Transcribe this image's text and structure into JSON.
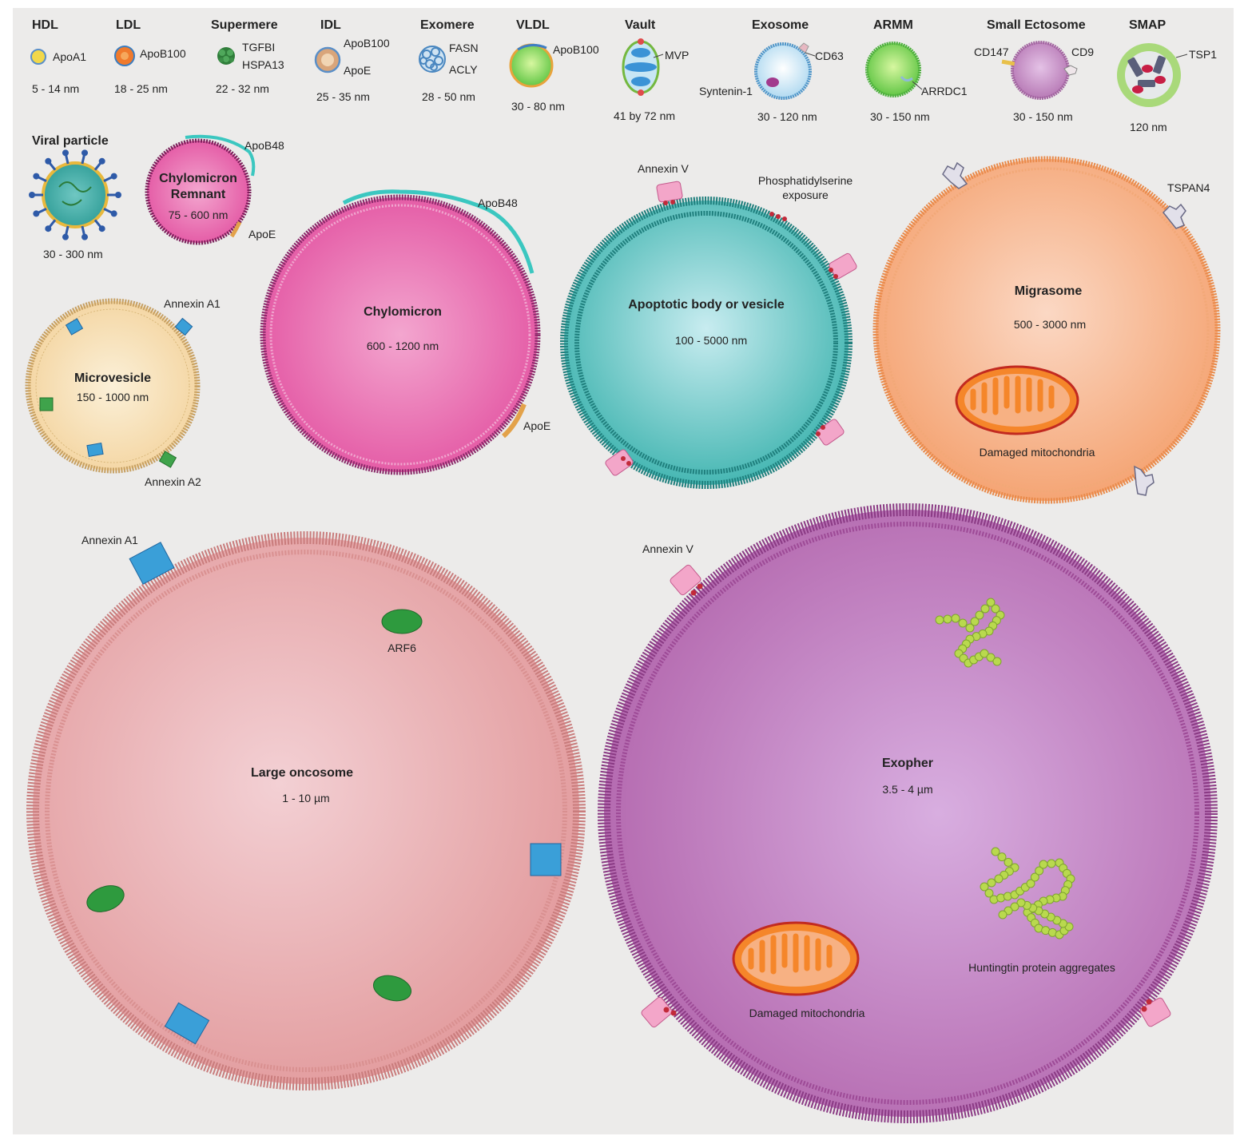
{
  "colors": {
    "background": "#ecebea",
    "hdl": "#f2d84a",
    "ldl": "#f07a2c",
    "chylomicron": "#e95aa6",
    "apoptotic": "#3fb5b0",
    "migrasome": "#f6a77a",
    "microvesicle": "#f6d6a0",
    "large_oncosome": "#e9a8a8",
    "exopher": "#b76bb0",
    "annexin_blue": "#3a9fd8",
    "arf6_green": "#2e9a3e",
    "huntingtin": "#b5d64a"
  },
  "top_row": [
    {
      "name": "HDL",
      "protein": "ApoA1",
      "size": "5 - 14 nm",
      "icon": "hdl-particle-icon"
    },
    {
      "name": "LDL",
      "protein": "ApoB100",
      "size": "18 - 25 nm",
      "icon": "ldl-particle-icon"
    },
    {
      "name": "Supermere",
      "protein": "TGFBI",
      "protein2": "HSPA13",
      "size": "22 - 32 nm",
      "icon": "supermere-icon"
    },
    {
      "name": "IDL",
      "protein": "ApoB100",
      "protein2": "ApoE",
      "size": "25 - 35 nm",
      "icon": "idl-particle-icon"
    },
    {
      "name": "Exomere",
      "protein": "FASN",
      "protein2": "ACLY",
      "size": "28 - 50 nm",
      "icon": "exomere-icon"
    },
    {
      "name": "VLDL",
      "protein": "ApoB100",
      "size": "30 - 80 nm",
      "icon": "vldl-particle-icon"
    },
    {
      "name": "Vault",
      "protein": "MVP",
      "size": "41 by 72 nm",
      "icon": "vault-icon"
    },
    {
      "name": "Exosome",
      "protein": "CD63",
      "protein2": "Syntenin-1",
      "size": "30 - 120 nm",
      "icon": "exosome-icon"
    },
    {
      "name": "ARMM",
      "protein": "ARRDC1",
      "size": "30 - 150 nm",
      "icon": "armm-icon"
    },
    {
      "name": "Small Ectosome",
      "protein": "CD147",
      "protein2": "CD9",
      "size": "30 - 150 nm",
      "icon": "small-ectosome-icon"
    },
    {
      "name": "SMAP",
      "protein": "TSP1",
      "size": "120 nm",
      "icon": "smap-icon"
    }
  ],
  "viral": {
    "name": "Viral particle",
    "size": "30 - 300 nm"
  },
  "chylo_remnant": {
    "name1": "Chylomicron",
    "name2": "Remnant",
    "size": "75 - 600 nm",
    "label1": "ApoB48",
    "label2": "ApoE"
  },
  "microvesicle": {
    "name": "Microvesicle",
    "size": "150 - 1000 nm",
    "label1": "Annexin A1",
    "label2": "Annexin A2"
  },
  "chylomicron": {
    "name": "Chylomicron",
    "size": "600 - 1200 nm",
    "label1": "ApoB48",
    "label2": "ApoE"
  },
  "apoptotic": {
    "name": "Apoptotic body or vesicle",
    "size": "100 - 5000 nm",
    "label1": "Annexin V",
    "label2a": "Phosphatidylserine",
    "label2b": "exposure"
  },
  "migrasome": {
    "name": "Migrasome",
    "size": "500 - 3000 nm",
    "label1": "TSPAN4",
    "label2": "Damaged mitochondria"
  },
  "large_oncosome": {
    "name": "Large oncosome",
    "size": "1 - 10 µm",
    "label1": "Annexin A1",
    "label2": "ARF6"
  },
  "exopher": {
    "name": "Exopher",
    "size": "3.5 - 4 µm",
    "label1": "Annexin V",
    "label2": "Damaged mitochondria",
    "label3": "Huntingtin protein aggregates"
  }
}
